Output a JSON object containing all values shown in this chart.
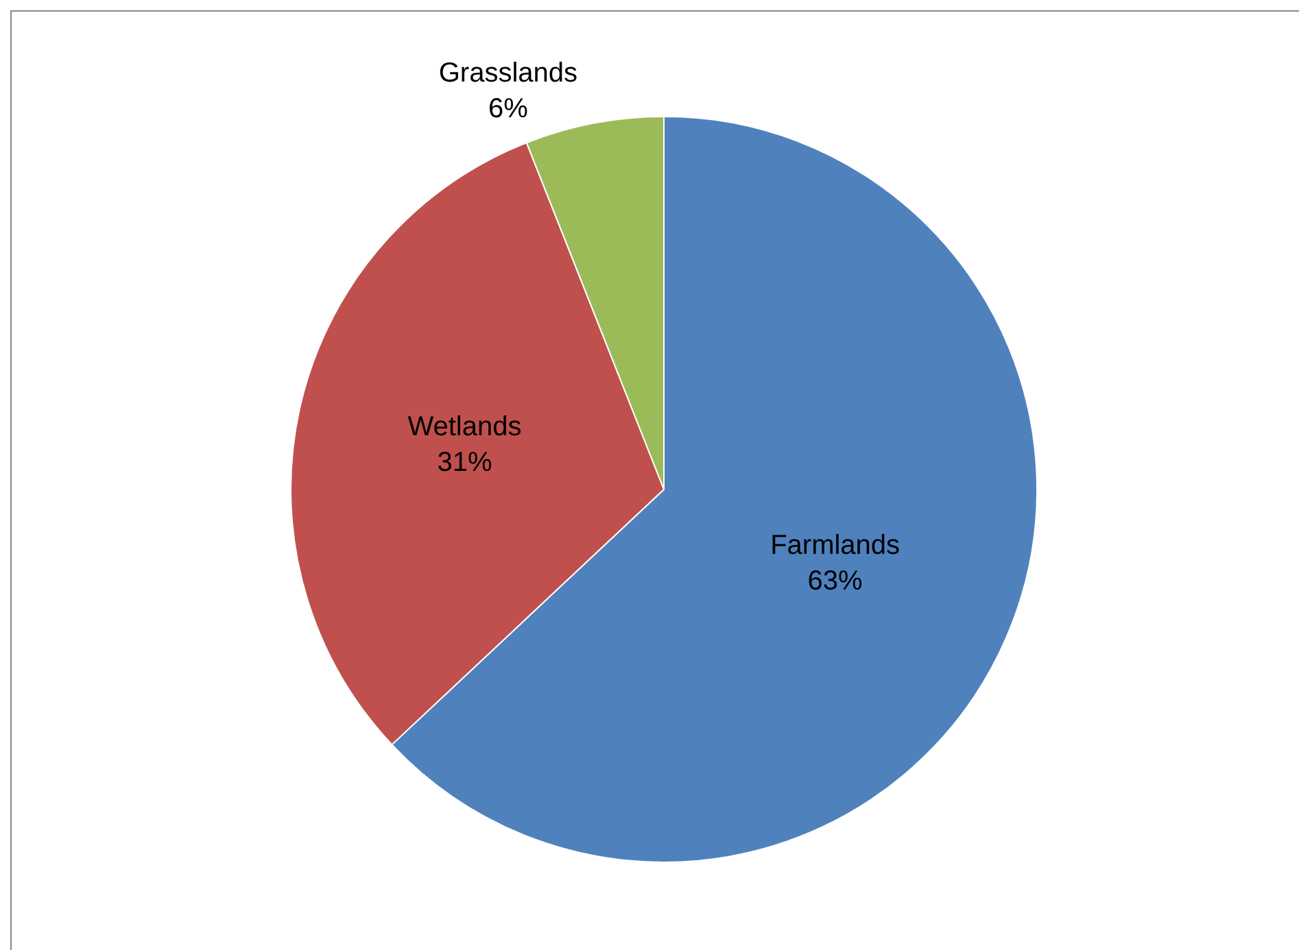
{
  "chart_data": {
    "type": "pie",
    "categories": [
      "Farmlands",
      "Wetlands",
      "Grasslands"
    ],
    "values": [
      63,
      31,
      6
    ],
    "value_labels": [
      "63%",
      "31%",
      "6%"
    ],
    "colors": [
      "#4f81bd",
      "#c0504d",
      "#9bbb59"
    ],
    "legend": false
  }
}
